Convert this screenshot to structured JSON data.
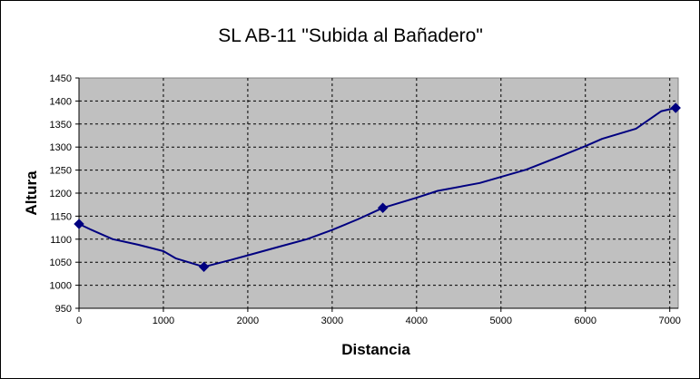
{
  "chart_data": {
    "type": "line",
    "title": "SL AB-11 \"Subida al Bañadero\"",
    "xlabel": "Distancia",
    "ylabel": "Altura",
    "xlim": [
      0,
      7100
    ],
    "ylim": [
      950,
      1450
    ],
    "xticks": [
      0,
      1000,
      2000,
      3000,
      4000,
      5000,
      6000,
      7000
    ],
    "yticks": [
      950,
      1000,
      1050,
      1100,
      1150,
      1200,
      1250,
      1300,
      1350,
      1400,
      1450
    ],
    "grid": true,
    "legend": "none",
    "colors": {
      "plot_background": "#c0c0c0",
      "line": "#000080",
      "gridline": "#000000"
    },
    "series": [
      {
        "points": [
          {
            "x": 0,
            "y": 1133
          },
          {
            "x": 150,
            "y": 1120
          },
          {
            "x": 400,
            "y": 1100
          },
          {
            "x": 700,
            "y": 1088
          },
          {
            "x": 1000,
            "y": 1074
          },
          {
            "x": 1150,
            "y": 1058
          },
          {
            "x": 1480,
            "y": 1040
          },
          {
            "x": 1800,
            "y": 1055
          },
          {
            "x": 2000,
            "y": 1065
          },
          {
            "x": 2400,
            "y": 1085
          },
          {
            "x": 2700,
            "y": 1100
          },
          {
            "x": 3000,
            "y": 1120
          },
          {
            "x": 3300,
            "y": 1143
          },
          {
            "x": 3600,
            "y": 1168
          },
          {
            "x": 4000,
            "y": 1190
          },
          {
            "x": 4250,
            "y": 1205
          },
          {
            "x": 4750,
            "y": 1222
          },
          {
            "x": 5300,
            "y": 1251
          },
          {
            "x": 5700,
            "y": 1280
          },
          {
            "x": 6000,
            "y": 1302
          },
          {
            "x": 6200,
            "y": 1318
          },
          {
            "x": 6600,
            "y": 1340
          },
          {
            "x": 6900,
            "y": 1378
          },
          {
            "x": 7070,
            "y": 1385
          }
        ],
        "markers": [
          {
            "x": 0,
            "y": 1133
          },
          {
            "x": 1480,
            "y": 1040
          },
          {
            "x": 3600,
            "y": 1168
          },
          {
            "x": 7070,
            "y": 1385
          }
        ]
      }
    ]
  }
}
